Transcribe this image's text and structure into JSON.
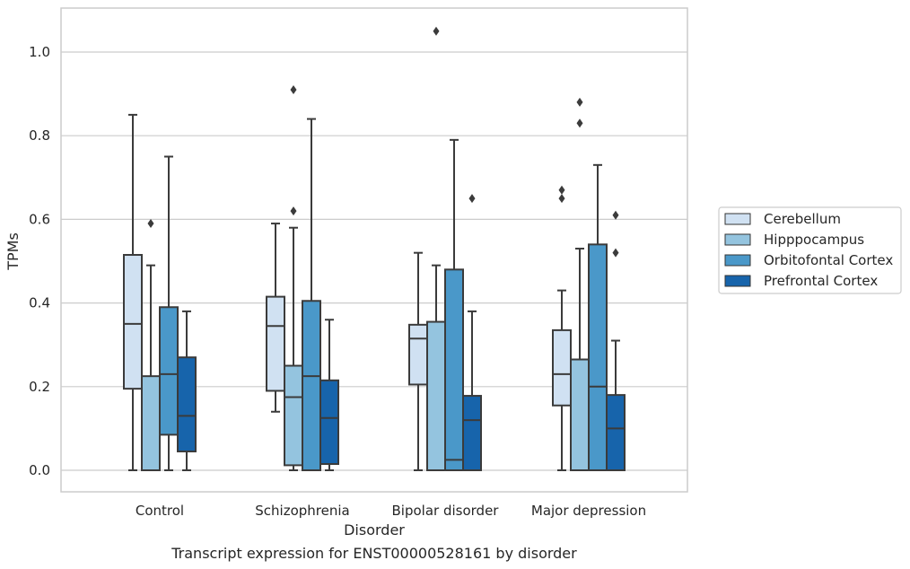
{
  "chart_data": {
    "type": "boxplot",
    "xlabel": "Disorder",
    "ylabel": "TPMs",
    "caption": "Transcript expression for ENST00000528161 by disorder",
    "ylim": [
      -0.05,
      1.1
    ],
    "yticks": [
      "0.0",
      "0.2",
      "0.4",
      "0.6",
      "0.8",
      "1.0"
    ],
    "ytick_values": [
      0.0,
      0.2,
      0.4,
      0.6,
      0.8,
      1.0
    ],
    "grid": true,
    "legend_position": "right",
    "categories": [
      "Control",
      "Schizophrenia",
      "Bipolar disorder",
      "Major depression"
    ],
    "series": [
      {
        "name": "Cerebellum",
        "color": "#d0e1f2",
        "boxes": [
          {
            "whislo": 0.0,
            "q1": 0.195,
            "med": 0.35,
            "q3": 0.515,
            "whishi": 0.85,
            "fliers": []
          },
          {
            "whislo": 0.14,
            "q1": 0.19,
            "med": 0.345,
            "q3": 0.415,
            "whishi": 0.59,
            "fliers": []
          },
          {
            "whislo": 0.0,
            "q1": 0.205,
            "med": 0.315,
            "q3": 0.348,
            "whishi": 0.52,
            "fliers": []
          },
          {
            "whislo": 0.0,
            "q1": 0.155,
            "med": 0.23,
            "q3": 0.335,
            "whishi": 0.43,
            "fliers": [
              0.65,
              0.67
            ]
          }
        ]
      },
      {
        "name": "Hipppocampus",
        "color": "#94c4df",
        "boxes": [
          {
            "whislo": 0.0,
            "q1": 0.0,
            "med": 0.0,
            "q3": 0.225,
            "whishi": 0.49,
            "fliers": [
              0.59
            ]
          },
          {
            "whislo": 0.0,
            "q1": 0.012,
            "med": 0.175,
            "q3": 0.25,
            "whishi": 0.58,
            "fliers": [
              0.62,
              0.91
            ]
          },
          {
            "whislo": 0.0,
            "q1": 0.0,
            "med": 0.0,
            "q3": 0.355,
            "whishi": 0.49,
            "fliers": [
              1.05
            ]
          },
          {
            "whislo": 0.0,
            "q1": 0.0,
            "med": 0.0,
            "q3": 0.265,
            "whishi": 0.53,
            "fliers": [
              0.83,
              0.88
            ]
          }
        ]
      },
      {
        "name": "Orbitofontal Cortex",
        "color": "#4a98c9",
        "boxes": [
          {
            "whislo": 0.0,
            "q1": 0.085,
            "med": 0.23,
            "q3": 0.39,
            "whishi": 0.75,
            "fliers": []
          },
          {
            "whislo": 0.0,
            "q1": 0.0,
            "med": 0.225,
            "q3": 0.405,
            "whishi": 0.84,
            "fliers": []
          },
          {
            "whislo": 0.0,
            "q1": 0.0,
            "med": 0.025,
            "q3": 0.48,
            "whishi": 0.79,
            "fliers": []
          },
          {
            "whislo": 0.0,
            "q1": 0.0,
            "med": 0.2,
            "q3": 0.54,
            "whishi": 0.73,
            "fliers": []
          }
        ]
      },
      {
        "name": "Prefrontal Cortex",
        "color": "#1764ab",
        "boxes": [
          {
            "whislo": 0.0,
            "q1": 0.045,
            "med": 0.13,
            "q3": 0.27,
            "whishi": 0.38,
            "fliers": []
          },
          {
            "whislo": 0.0,
            "q1": 0.015,
            "med": 0.125,
            "q3": 0.215,
            "whishi": 0.36,
            "fliers": []
          },
          {
            "whislo": 0.0,
            "q1": 0.0,
            "med": 0.12,
            "q3": 0.178,
            "whishi": 0.38,
            "fliers": [
              0.65
            ]
          },
          {
            "whislo": 0.0,
            "q1": 0.0,
            "med": 0.1,
            "q3": 0.18,
            "whishi": 0.31,
            "fliers": [
              0.52,
              0.61
            ]
          }
        ]
      }
    ]
  }
}
